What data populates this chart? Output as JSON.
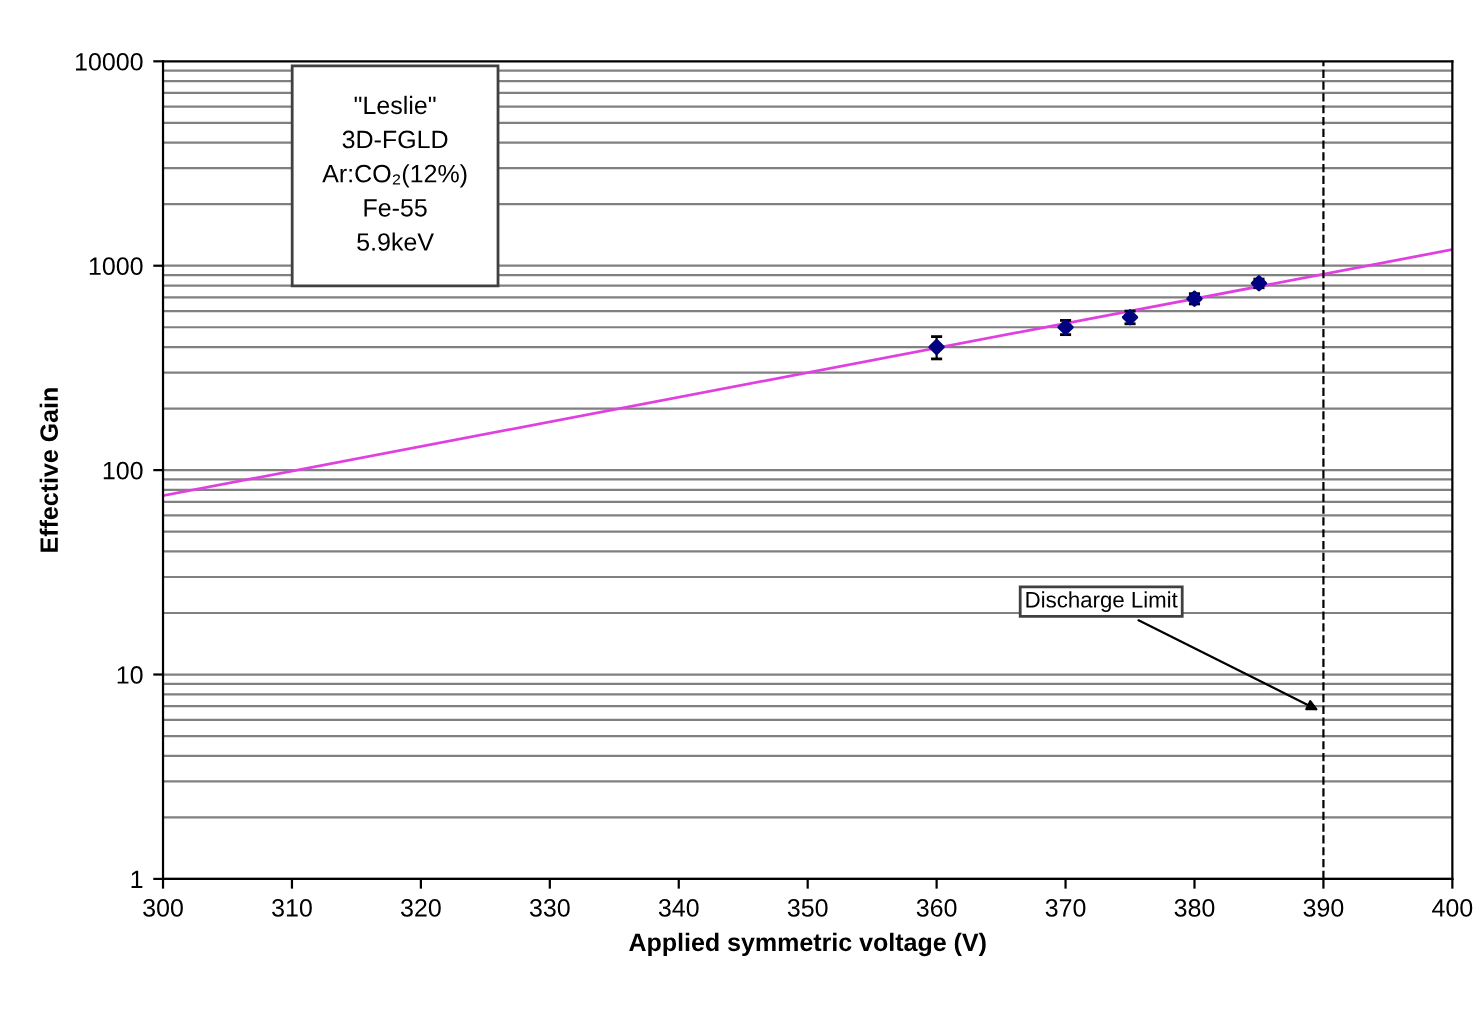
{
  "chart_data": {
    "type": "scatter",
    "xlabel": "Applied symmetric voltage (V)",
    "ylabel": "Effective Gain",
    "x": [
      360,
      370,
      375,
      380,
      385
    ],
    "series": [
      {
        "color": "#000080",
        "marker": "diamond",
        "values": [
          400,
          500,
          560,
          690,
          820
        ],
        "errors": [
          50,
          40,
          40,
          40,
          40
        ]
      },
      {
        "type": "line",
        "color": "#e040e0",
        "marker": "none",
        "x": [
          300,
          400
        ],
        "values": [
          75,
          1200
        ]
      }
    ],
    "log": "y",
    "xlim": [
      300,
      400
    ],
    "ylim": [
      1,
      10000
    ],
    "xticks": [
      300,
      310,
      320,
      330,
      340,
      350,
      360,
      370,
      380,
      390,
      400
    ],
    "yticks": [
      1,
      10,
      100,
      1000,
      10000
    ],
    "grid": "y",
    "ref_lines": [
      {
        "axis": "x",
        "value": 390,
        "line_style": "dashed",
        "color": "#000000"
      }
    ],
    "annotations": [
      "\"Leslie\"\n3D-FGLD\nAr:CO₂(12%)\nFe-55\n5.9keV",
      {
        "text": "Discharge Limit",
        "x": 390,
        "y": 6.5
      }
    ]
  }
}
